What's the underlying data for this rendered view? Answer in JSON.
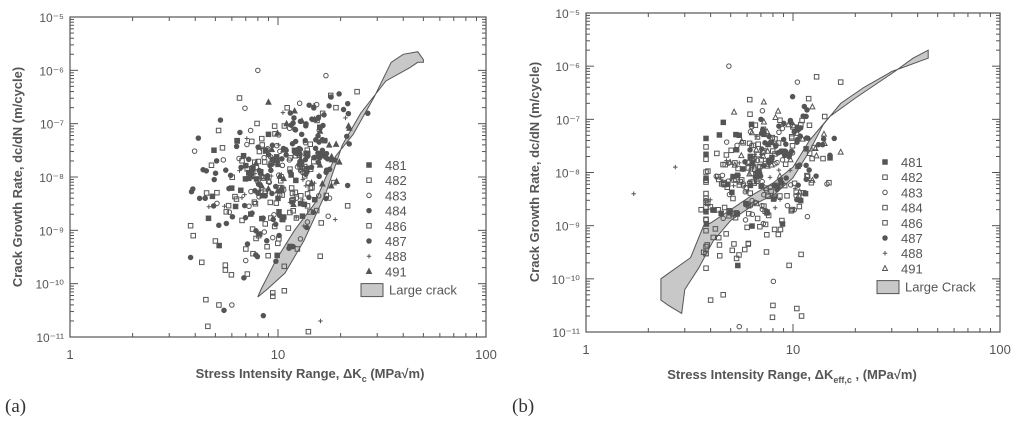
{
  "chart_data": [
    {
      "type": "scatter",
      "panel_label": "(a)",
      "x_scale": "log",
      "y_scale": "log",
      "xlim": [
        1,
        100
      ],
      "ylim": [
        1e-11,
        1e-05
      ],
      "x_ticks": [
        "1",
        "10",
        "100"
      ],
      "y_ticks": [
        "10⁻¹¹",
        "10⁻¹⁰",
        "10⁻⁹",
        "10⁻⁸",
        "10⁻⁷",
        "10⁻⁶",
        "10⁻⁵"
      ],
      "xlabel": "Stress Intensity Range, ΔK",
      "xlabel_sub": "c",
      "xlabel_unit": "(MPa√m)",
      "ylabel": "Crack Growth Rate, dc/dN  (m/cycle)",
      "grid": false,
      "legend_position": "bottom-right",
      "series": [
        {
          "name": "481",
          "marker": "filled-square",
          "center": [
            8.6,
            -8.2
          ],
          "spread": [
            0.3,
            0.55
          ],
          "count": 40,
          "points": [
            [
              9.0,
              -7.2
            ],
            [
              12.0,
              -7.5
            ],
            [
              10.0,
              -8.4
            ]
          ]
        },
        {
          "name": "482",
          "marker": "open-square",
          "center": [
            8.0,
            -8.7
          ],
          "spread": [
            0.32,
            0.7
          ],
          "count": 55,
          "points": [
            [
              4.3,
              -9.6
            ],
            [
              4.5,
              -10.3
            ],
            [
              4.6,
              -10.8
            ],
            [
              24.0,
              -6.4
            ],
            [
              19.0,
              -6.7
            ],
            [
              14.0,
              -10.9
            ]
          ]
        },
        {
          "name": "483",
          "marker": "open-circle",
          "center": [
            9.5,
            -8.0
          ],
          "spread": [
            0.3,
            0.6
          ],
          "count": 55,
          "points": [
            [
              8.0,
              -6.0
            ],
            [
              17.0,
              -6.1
            ],
            [
              6.0,
              -10.4
            ]
          ]
        },
        {
          "name": "484",
          "marker": "filled-circle",
          "center": [
            7.6,
            -8.4
          ],
          "spread": [
            0.32,
            0.65
          ],
          "count": 60,
          "points": [
            [
              13.0,
              -7.2
            ],
            [
              4.2,
              -8.4
            ],
            [
              8.5,
              -10.6
            ]
          ]
        },
        {
          "name": "486",
          "marker": "open-square",
          "center": [
            12.0,
            -7.8
          ],
          "spread": [
            0.28,
            0.55
          ],
          "count": 50,
          "points": [
            [
              5.0,
              -9.2
            ],
            [
              5.2,
              -10.4
            ]
          ]
        },
        {
          "name": "487",
          "marker": "filled-circle",
          "center": [
            14.5,
            -7.4
          ],
          "spread": [
            0.18,
            0.4
          ],
          "count": 70,
          "points": [
            [
              18.0,
              -6.5
            ],
            [
              5.5,
              -10.5
            ]
          ]
        },
        {
          "name": "488",
          "marker": "plus",
          "center": [
            10.0,
            -7.9
          ],
          "spread": [
            0.28,
            0.5
          ],
          "count": 30,
          "points": [
            [
              16.0,
              -10.7
            ]
          ]
        },
        {
          "name": "491",
          "marker": "filled-triangle",
          "center": [
            13.0,
            -7.6
          ],
          "spread": [
            0.25,
            0.45
          ],
          "count": 35,
          "points": [
            [
              11.0,
              -7.0
            ]
          ]
        }
      ],
      "large_crack": {
        "name": "Large crack",
        "band": [
          [
            8.0,
            -10.25
          ],
          [
            8.9,
            -10.1
          ],
          [
            10.8,
            -9.8
          ],
          [
            13.3,
            -9.2
          ],
          [
            17.0,
            -8.3
          ],
          [
            20.4,
            -7.4
          ],
          [
            25.0,
            -6.8
          ],
          [
            33.0,
            -6.2
          ],
          [
            43.0,
            -5.95
          ],
          [
            47.0,
            -5.85
          ],
          [
            50.0,
            -5.85
          ],
          [
            50.0,
            -5.8
          ],
          [
            47.0,
            -5.65
          ],
          [
            40.0,
            -5.7
          ],
          [
            35.0,
            -5.85
          ],
          [
            29.0,
            -6.5
          ],
          [
            23.0,
            -7.2
          ],
          [
            19.0,
            -7.6
          ],
          [
            17.0,
            -8.0
          ],
          [
            15.0,
            -8.5
          ],
          [
            12.0,
            -9.0
          ],
          [
            9.8,
            -9.55
          ],
          [
            8.3,
            -10.1
          ]
        ]
      }
    },
    {
      "type": "scatter",
      "panel_label": "(b)",
      "x_scale": "log",
      "y_scale": "log",
      "xlim": [
        1,
        100
      ],
      "ylim": [
        1e-11,
        1e-05
      ],
      "x_ticks": [
        "1",
        "10",
        "100"
      ],
      "y_ticks": [
        "10⁻¹¹",
        "10⁻¹⁰",
        "10⁻⁹",
        "10⁻⁸",
        "10⁻⁷",
        "10⁻⁶",
        "10⁻⁵"
      ],
      "xlabel": "Stress Intensity Range, ΔK",
      "xlabel_sub": "eff,c",
      "xlabel_unit": ",   (MPa√m)",
      "ylabel": "Crack Growth Rate, dc/dN  (m/cycle)",
      "grid": false,
      "legend_position": "bottom-right",
      "series": [
        {
          "name": "481",
          "marker": "filled-square",
          "center": [
            6.5,
            -8.3
          ],
          "spread": [
            0.28,
            0.6
          ],
          "count": 40,
          "points": [
            [
              5.5,
              -7.3
            ],
            [
              9.0,
              -7.6
            ]
          ]
        },
        {
          "name": "482",
          "marker": "open-square",
          "center": [
            5.8,
            -8.6
          ],
          "spread": [
            0.28,
            0.7
          ],
          "count": 55,
          "points": [
            [
              3.7,
              -9.5
            ],
            [
              4.0,
              -10.4
            ],
            [
              13.0,
              -6.2
            ],
            [
              17.0,
              -6.3
            ],
            [
              11.0,
              -10.7
            ]
          ]
        },
        {
          "name": "483",
          "marker": "open-circle",
          "center": [
            7.2,
            -8.2
          ],
          "spread": [
            0.28,
            0.6
          ],
          "count": 55,
          "points": [
            [
              4.9,
              -6.0
            ],
            [
              10.5,
              -6.3
            ],
            [
              5.5,
              -10.9
            ]
          ]
        },
        {
          "name": "484",
          "marker": "open-square",
          "center": [
            5.5,
            -8.5
          ],
          "spread": [
            0.3,
            0.65
          ],
          "count": 50,
          "points": [
            [
              3.6,
              -8.7
            ],
            [
              8.0,
              -10.5
            ]
          ]
        },
        {
          "name": "486",
          "marker": "open-square",
          "center": [
            8.2,
            -7.9
          ],
          "spread": [
            0.25,
            0.55
          ],
          "count": 50,
          "points": [
            [
              4.6,
              -10.3
            ]
          ]
        },
        {
          "name": "487",
          "marker": "filled-circle",
          "center": [
            9.0,
            -7.6
          ],
          "spread": [
            0.2,
            0.45
          ],
          "count": 60,
          "points": [
            [
              7.0,
              -7.0
            ]
          ]
        },
        {
          "name": "488",
          "marker": "plus",
          "center": [
            6.5,
            -8.0
          ],
          "spread": [
            0.28,
            0.5
          ],
          "count": 25,
          "points": [
            [
              1.7,
              -8.4
            ],
            [
              2.7,
              -7.9
            ]
          ]
        },
        {
          "name": "491",
          "marker": "open-triangle",
          "center": [
            8.8,
            -7.7
          ],
          "spread": [
            0.25,
            0.45
          ],
          "count": 35,
          "points": [
            [
              9.5,
              -7.1
            ]
          ]
        }
      ],
      "large_crack": {
        "name": "Large Crack",
        "band": [
          [
            2.3,
            -10.4
          ],
          [
            2.5,
            -10.5
          ],
          [
            2.9,
            -10.65
          ],
          [
            3.0,
            -10.2
          ],
          [
            3.5,
            -9.8
          ],
          [
            4.1,
            -9.3
          ],
          [
            5.0,
            -8.9
          ],
          [
            6.5,
            -8.6
          ],
          [
            8.2,
            -8.4
          ],
          [
            10.0,
            -8.1
          ],
          [
            12.0,
            -7.6
          ],
          [
            14.0,
            -7.1
          ],
          [
            17.0,
            -6.7
          ],
          [
            22.0,
            -6.4
          ],
          [
            30.0,
            -6.1
          ],
          [
            45.0,
            -5.85
          ],
          [
            45.0,
            -5.7
          ],
          [
            38.0,
            -5.85
          ],
          [
            31.0,
            -6.1
          ],
          [
            20.0,
            -6.6
          ],
          [
            15.0,
            -6.95
          ],
          [
            12.0,
            -7.4
          ],
          [
            10.0,
            -7.9
          ],
          [
            8.0,
            -8.2
          ],
          [
            6.5,
            -8.4
          ],
          [
            5.0,
            -8.7
          ],
          [
            4.0,
            -8.95
          ],
          [
            3.7,
            -9.0
          ],
          [
            3.2,
            -9.6
          ],
          [
            2.3,
            -10.0
          ]
        ]
      }
    }
  ]
}
